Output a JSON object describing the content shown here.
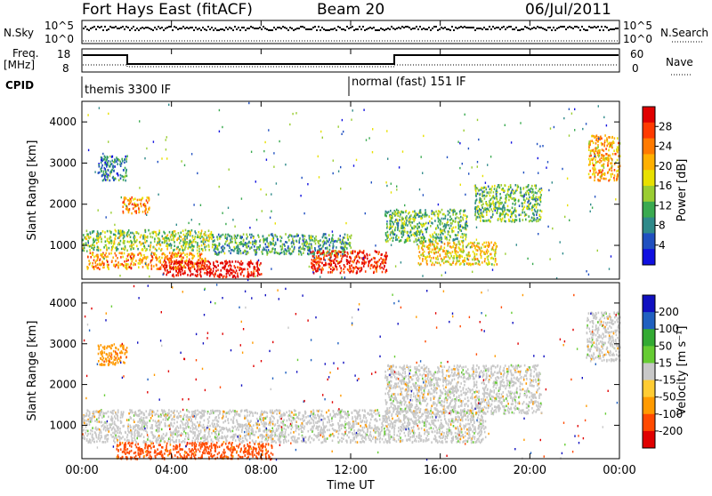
{
  "header": {
    "station": "Fort Hays East (fitACF)",
    "beam": "Beam 20",
    "date": "06/Jul/2011"
  },
  "top_panels": {
    "nsky_label": "N.Sky",
    "nsky_tick_high": "10^5",
    "nsky_tick_low": "10^0",
    "nsearch_label": "N.Search",
    "nsearch_tick_high": "10^5",
    "nsearch_tick_low": "10^0",
    "freq_label_1": "Freq.",
    "freq_label_2": "[MHz]",
    "freq_tick_high": "18",
    "freq_tick_low": "8",
    "nave_label": "Nave",
    "nave_tick_high": "60",
    "nave_tick_low": "0",
    "cpid_label": "CPID",
    "cpid_mode_1": "themis 3300 IF",
    "cpid_mode_2": "normal (fast) 151 IF"
  },
  "colorbars": {
    "power": {
      "label": "Power [dB]",
      "ticks": [
        "28",
        "24",
        "20",
        "16",
        "12",
        "8",
        "4"
      ],
      "colors": [
        "#1010e0",
        "#2050c0",
        "#2f8a8a",
        "#3aaa50",
        "#9acd32",
        "#e8e000",
        "#ffb000",
        "#ff7a00",
        "#ff3a00",
        "#e00000"
      ]
    },
    "velocity": {
      "label": "Velocity [m s⁻¹]",
      "ticks": [
        "200",
        "100",
        "50",
        "15",
        "-15",
        "-50",
        "-100",
        "-200"
      ],
      "colors": [
        "#e00000",
        "#ff4a00",
        "#ff9a00",
        "#ffcc33",
        "#c8c8c8",
        "#66cc33",
        "#33aa33",
        "#2060c0",
        "#1010c0"
      ]
    }
  },
  "chart_data": [
    {
      "type": "heatmap",
      "name": "Power",
      "ylabel": "Slant Range [km]",
      "xlabel": "",
      "xlim": [
        0,
        24
      ],
      "ylim": [
        180,
        4500
      ],
      "x_ticks": [
        "00:00",
        "04:00",
        "08:00",
        "12:00",
        "16:00",
        "20:00",
        "00:00"
      ],
      "y_ticks": [
        1000,
        2000,
        3000,
        4000
      ],
      "colorbar": "Power [dB]",
      "patches": [
        {
          "t0": 0.0,
          "t1": 5.8,
          "r0": 900,
          "r1": 1400,
          "level": 12
        },
        {
          "t0": 0.2,
          "t1": 5.5,
          "r0": 450,
          "r1": 850,
          "level": 20
        },
        {
          "t0": 3.6,
          "t1": 8.0,
          "r0": 250,
          "r1": 650,
          "level": 28
        },
        {
          "t0": 5.8,
          "t1": 12.0,
          "r0": 800,
          "r1": 1300,
          "level": 8
        },
        {
          "t0": 10.2,
          "t1": 13.6,
          "r0": 350,
          "r1": 900,
          "level": 26
        },
        {
          "t0": 13.5,
          "t1": 17.2,
          "r0": 1100,
          "r1": 1900,
          "level": 10
        },
        {
          "t0": 15.0,
          "t1": 18.5,
          "r0": 550,
          "r1": 1100,
          "level": 16
        },
        {
          "t0": 17.5,
          "t1": 20.5,
          "r0": 1600,
          "r1": 2500,
          "level": 10
        },
        {
          "t0": 22.6,
          "t1": 24.0,
          "r0": 2600,
          "r1": 3700,
          "level": 18
        },
        {
          "t0": 0.7,
          "t1": 2.0,
          "r0": 2600,
          "r1": 3200,
          "level": 6
        },
        {
          "t0": 1.8,
          "t1": 3.0,
          "r0": 1800,
          "r1": 2200,
          "level": 20
        }
      ]
    },
    {
      "type": "heatmap",
      "name": "Velocity",
      "ylabel": "Slant Range [km]",
      "xlabel": "Time UT",
      "xlim": [
        0,
        24
      ],
      "ylim": [
        180,
        4500
      ],
      "x_ticks": [
        "00:00",
        "04:00",
        "08:00",
        "12:00",
        "16:00",
        "20:00",
        "00:00"
      ],
      "y_ticks": [
        1000,
        2000,
        3000,
        4000
      ],
      "colorbar": "Velocity [m s⁻¹]",
      "patches": [
        {
          "t0": 0.0,
          "t1": 18.0,
          "r0": 600,
          "r1": 1400,
          "level": 0
        },
        {
          "t0": 1.5,
          "t1": 8.5,
          "r0": 200,
          "r1": 600,
          "level": -60
        },
        {
          "t0": 13.5,
          "t1": 20.5,
          "r0": 1300,
          "r1": 2500,
          "level": 0
        },
        {
          "t0": 22.5,
          "t1": 24.0,
          "r0": 2600,
          "r1": 3800,
          "level": 0
        },
        {
          "t0": 0.7,
          "t1": 2.0,
          "r0": 2500,
          "r1": 3000,
          "level": -40
        }
      ]
    }
  ]
}
